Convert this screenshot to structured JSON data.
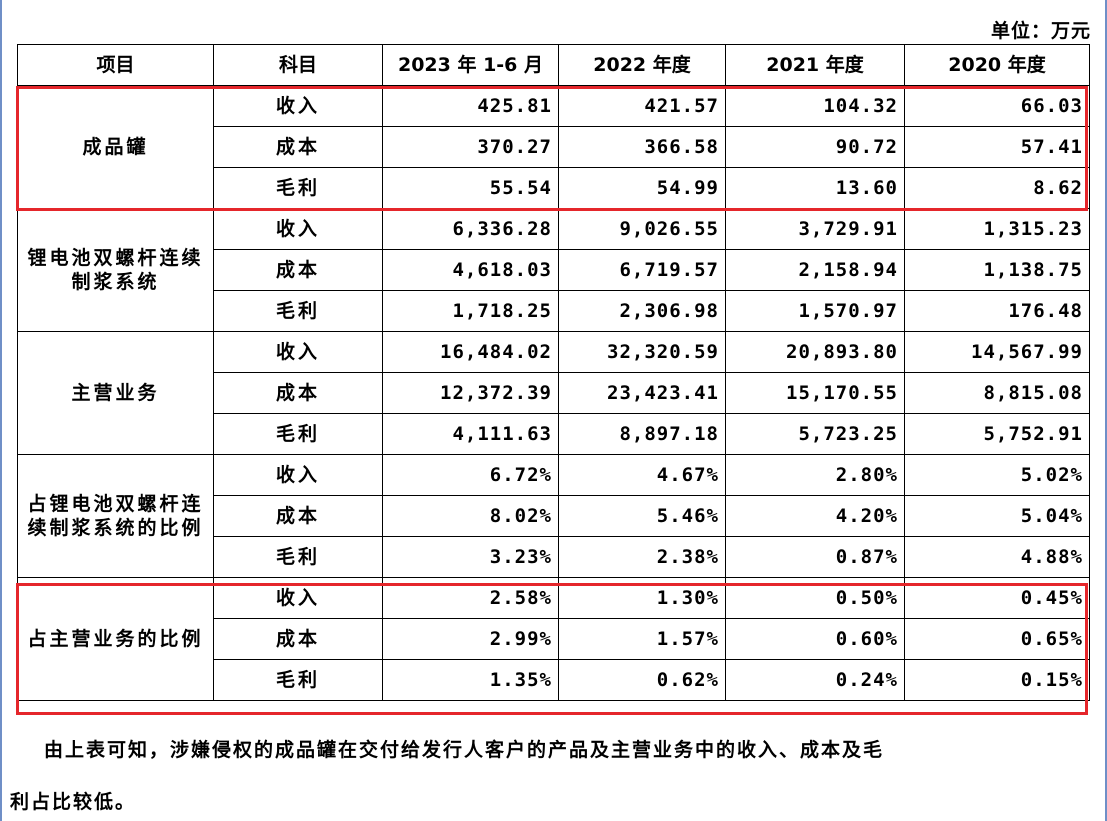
{
  "unit_label": "单位：万元",
  "table": {
    "headers": [
      "项目",
      "科目",
      "2023 年 1-6 月",
      "2022 年度",
      "2021 年度",
      "2020 年度"
    ],
    "groups": [
      {
        "label": "成品罐",
        "rows": [
          {
            "subject": "收入",
            "values": [
              "425.81",
              "421.57",
              "104.32",
              "66.03"
            ]
          },
          {
            "subject": "成本",
            "values": [
              "370.27",
              "366.58",
              "90.72",
              "57.41"
            ]
          },
          {
            "subject": "毛利",
            "values": [
              "55.54",
              "54.99",
              "13.60",
              "8.62"
            ]
          }
        ]
      },
      {
        "label": "锂电池双螺杆连续制浆系统",
        "rows": [
          {
            "subject": "收入",
            "values": [
              "6,336.28",
              "9,026.55",
              "3,729.91",
              "1,315.23"
            ]
          },
          {
            "subject": "成本",
            "values": [
              "4,618.03",
              "6,719.57",
              "2,158.94",
              "1,138.75"
            ]
          },
          {
            "subject": "毛利",
            "values": [
              "1,718.25",
              "2,306.98",
              "1,570.97",
              "176.48"
            ]
          }
        ]
      },
      {
        "label": "主营业务",
        "rows": [
          {
            "subject": "收入",
            "values": [
              "16,484.02",
              "32,320.59",
              "20,893.80",
              "14,567.99"
            ]
          },
          {
            "subject": "成本",
            "values": [
              "12,372.39",
              "23,423.41",
              "15,170.55",
              "8,815.08"
            ]
          },
          {
            "subject": "毛利",
            "values": [
              "4,111.63",
              "8,897.18",
              "5,723.25",
              "5,752.91"
            ]
          }
        ]
      },
      {
        "label": "占锂电池双螺杆连续制浆系统的比例",
        "rows": [
          {
            "subject": "收入",
            "values": [
              "6.72%",
              "4.67%",
              "2.80%",
              "5.02%"
            ]
          },
          {
            "subject": "成本",
            "values": [
              "8.02%",
              "5.46%",
              "4.20%",
              "5.04%"
            ]
          },
          {
            "subject": "毛利",
            "values": [
              "3.23%",
              "2.38%",
              "0.87%",
              "4.88%"
            ]
          }
        ]
      },
      {
        "label": "占主营业务的比例",
        "rows": [
          {
            "subject": "收入",
            "values": [
              "2.58%",
              "1.30%",
              "0.50%",
              "0.45%"
            ]
          },
          {
            "subject": "成本",
            "values": [
              "2.99%",
              "1.57%",
              "0.60%",
              "0.65%"
            ]
          },
          {
            "subject": "毛利",
            "values": [
              "1.35%",
              "0.62%",
              "0.24%",
              "0.15%"
            ]
          }
        ]
      }
    ]
  },
  "highlight_color": "#e5262b",
  "paragraph_line1": "由上表可知，涉嫌侵权的成品罐在交付给发行人客户的产品及主营业务中的收入、成本及毛",
  "paragraph_line2": "利占比较低。"
}
